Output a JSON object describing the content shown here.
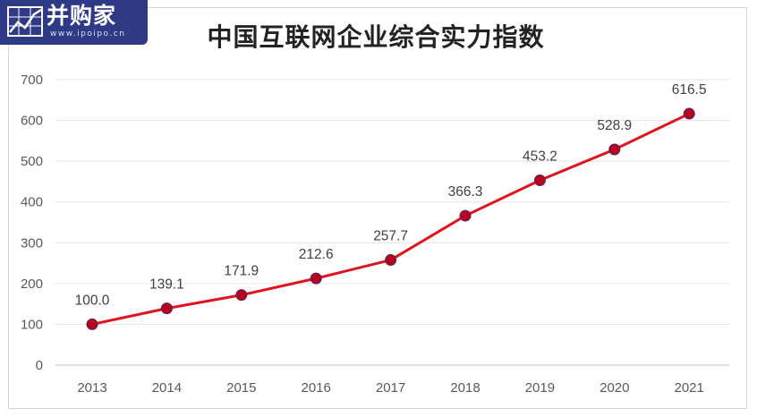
{
  "logo": {
    "name": "并购家",
    "url": "www.ipoipo.cn",
    "icon": "chart-frame-icon"
  },
  "chart_data": {
    "type": "line",
    "title": "中国互联网企业综合实力指数",
    "xlabel": "",
    "ylabel": "",
    "categories": [
      "2013",
      "2014",
      "2015",
      "2016",
      "2017",
      "2018",
      "2019",
      "2020",
      "2021"
    ],
    "values": [
      100.0,
      139.1,
      171.9,
      212.6,
      257.7,
      366.3,
      453.2,
      528.9,
      616.5
    ],
    "data_labels": [
      "100.0",
      "139.1",
      "171.9",
      "212.6",
      "257.7",
      "366.3",
      "453.2",
      "528.9",
      "616.5"
    ],
    "ylim": [
      0,
      700
    ],
    "yticks": [
      0,
      100,
      200,
      300,
      400,
      500,
      600,
      700
    ],
    "grid": true,
    "legend": "none",
    "line_color": "#e0141e",
    "marker_color": "#c00018",
    "marker_edge_color": "#7a1a4a"
  }
}
